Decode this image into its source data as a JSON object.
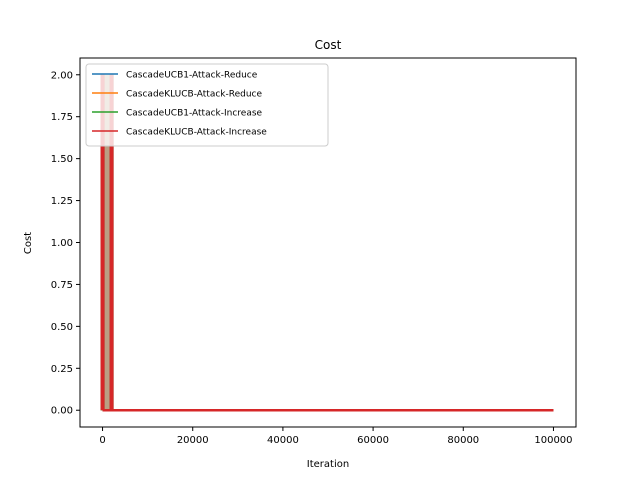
{
  "chart_data": {
    "type": "line",
    "title": "Cost",
    "xlabel": "Iteration",
    "ylabel": "Cost",
    "xlim": [
      -5000,
      105000
    ],
    "ylim": [
      -0.1,
      2.1
    ],
    "xticks": [
      0,
      20000,
      40000,
      60000,
      80000,
      100000
    ],
    "xtick_labels": [
      "0",
      "20000",
      "40000",
      "60000",
      "80000",
      "100000"
    ],
    "yticks": [
      0,
      0.25,
      0.5,
      0.75,
      1.0,
      1.25,
      1.5,
      1.75,
      2.0
    ],
    "ytick_labels": [
      "0.00",
      "0.25",
      "0.50",
      "0.75",
      "1.00",
      "1.25",
      "1.50",
      "1.75",
      "2.00"
    ],
    "grid": false,
    "legend_position": "top-left",
    "burst_range": [
      0,
      2000
    ],
    "series": [
      {
        "name": "CascadeUCB1-Attack-Reduce",
        "color": "#1f77b4",
        "peak": 2.0,
        "end": [
          2000,
          100000
        ],
        "end_value": 0
      },
      {
        "name": "CascadeKLUCB-Attack-Reduce",
        "color": "#ff7f0e",
        "peak": 2.0,
        "end": [
          2000,
          100000
        ],
        "end_value": 0
      },
      {
        "name": "CascadeUCB1-Attack-Increase",
        "color": "#2ca02c",
        "peak": 2.0,
        "end": [
          2000,
          100000
        ],
        "end_value": 0
      },
      {
        "name": "CascadeKLUCB-Attack-Increase",
        "color": "#d62728",
        "peak": 2.0,
        "end": [
          2000,
          100000
        ],
        "end_value": 0
      }
    ]
  }
}
